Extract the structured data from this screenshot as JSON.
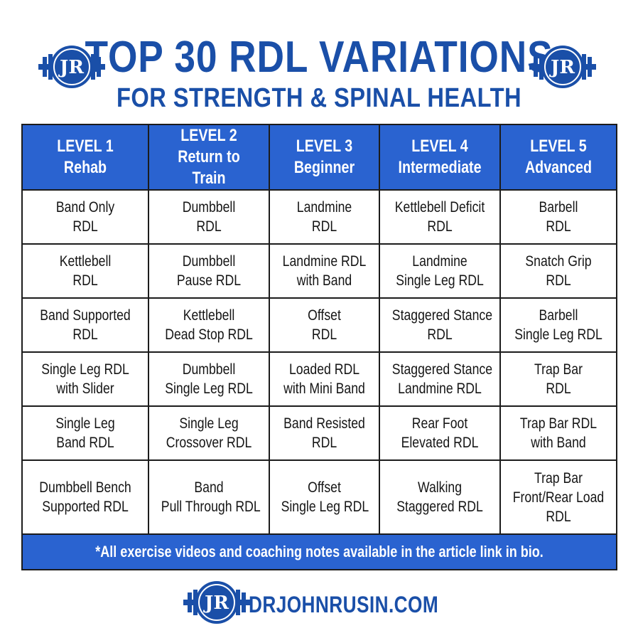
{
  "header": {
    "title": "TOP 30 RDL VARIATIONS",
    "subtitle": "FOR STRENGTH & SPINAL HEALTH"
  },
  "logo": {
    "text": "JR",
    "icon": "barbell-logo-icon"
  },
  "levels": [
    {
      "level": "LEVEL 1",
      "name": "Rehab"
    },
    {
      "level": "LEVEL 2",
      "name": "Return to Train"
    },
    {
      "level": "LEVEL 3",
      "name": "Beginner"
    },
    {
      "level": "LEVEL 4",
      "name": "Intermediate"
    },
    {
      "level": "LEVEL 5",
      "name": "Advanced"
    }
  ],
  "rows": [
    [
      [
        "Band Only",
        "RDL"
      ],
      [
        "Dumbbell",
        "RDL"
      ],
      [
        "Landmine",
        "RDL"
      ],
      [
        "Kettlebell Deficit",
        "RDL"
      ],
      [
        "Barbell",
        "RDL"
      ]
    ],
    [
      [
        "Kettlebell",
        "RDL"
      ],
      [
        "Dumbbell",
        "Pause RDL"
      ],
      [
        "Landmine RDL",
        "with Band"
      ],
      [
        "Landmine",
        "Single Leg RDL"
      ],
      [
        "Snatch Grip",
        "RDL"
      ]
    ],
    [
      [
        "Band Supported",
        "RDL"
      ],
      [
        "Kettlebell",
        "Dead Stop RDL"
      ],
      [
        "Offset",
        "RDL"
      ],
      [
        "Staggered Stance",
        "RDL"
      ],
      [
        "Barbell",
        "Single Leg RDL"
      ]
    ],
    [
      [
        "Single Leg RDL",
        "with Slider"
      ],
      [
        "Dumbbell",
        "Single Leg RDL"
      ],
      [
        "Loaded RDL",
        "with Mini Band"
      ],
      [
        "Staggered Stance",
        "Landmine RDL"
      ],
      [
        "Trap Bar",
        "RDL"
      ]
    ],
    [
      [
        "Single Leg",
        "Band RDL"
      ],
      [
        "Single Leg",
        "Crossover RDL"
      ],
      [
        "Band Resisted",
        "RDL"
      ],
      [
        "Rear Foot",
        "Elevated RDL"
      ],
      [
        "Trap Bar RDL",
        "with Band"
      ]
    ],
    [
      [
        "Dumbbell Bench",
        "Supported RDL"
      ],
      [
        "Band",
        "Pull Through RDL"
      ],
      [
        "Offset",
        "Single Leg RDL"
      ],
      [
        "Walking",
        "Staggered RDL"
      ],
      [
        "Trap Bar",
        "Front/Rear Load",
        "RDL"
      ]
    ]
  ],
  "footer_note": "*All exercise videos and coaching notes available in the article link in bio.",
  "website": "DRJOHNRUSIN.COM",
  "colors": {
    "brand_blue": "#1a4fa8",
    "header_fill": "#2a63d0",
    "grid_line": "#1c1c1c"
  }
}
